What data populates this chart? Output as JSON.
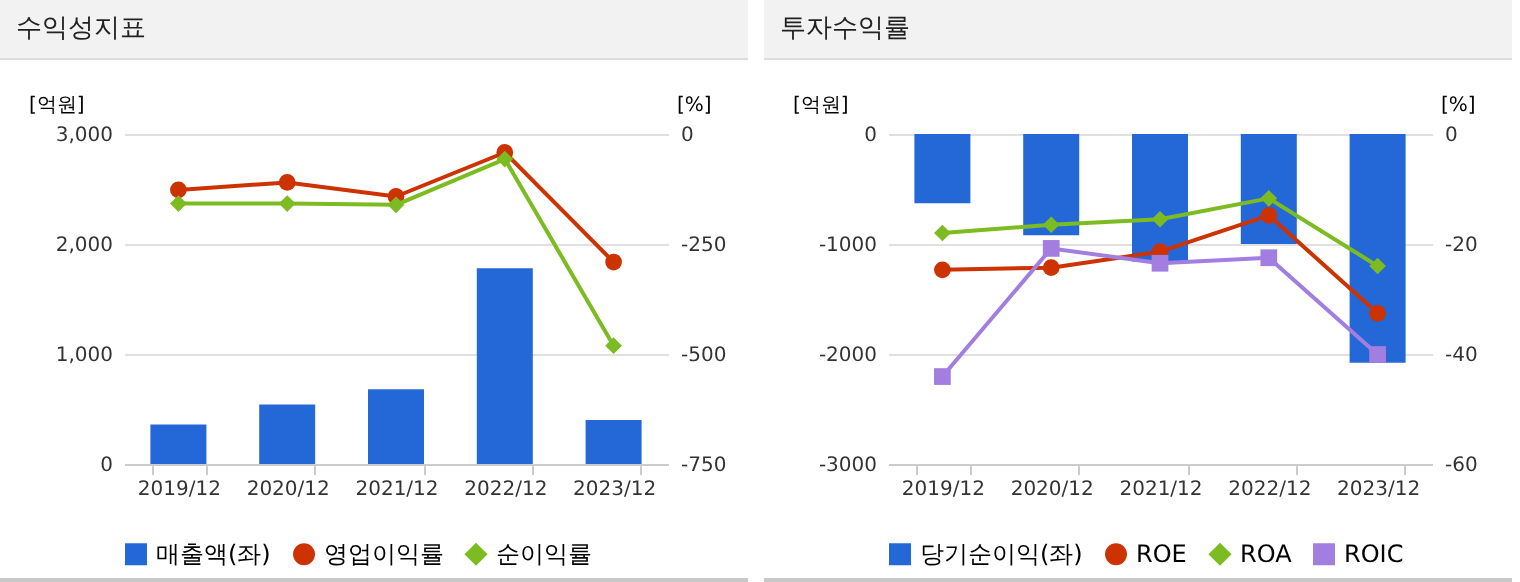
{
  "chart_data": [
    {
      "type": "bar",
      "title": "수익성지표",
      "ylabel": "[억원]",
      "y2label": "[%]",
      "categories": [
        "2019/12",
        "2020/12",
        "2021/12",
        "2022/12",
        "2023/12"
      ],
      "ylim": [
        0,
        3000
      ],
      "yticks": [
        0,
        {
          "value": 1000,
          "label": "1,000"
        },
        {
          "value": 2000,
          "label": "2,000"
        },
        {
          "value": 3000,
          "label": "3,000"
        }
      ],
      "y2lim": [
        -750,
        0
      ],
      "y2ticks": [
        -750,
        -500,
        -250,
        0
      ],
      "grid": "y",
      "legend": "bottom",
      "series": [
        {
          "name": "매출액(좌)",
          "color": "#2468d8",
          "values": [
            360,
            540,
            680,
            1780,
            400
          ]
        },
        {
          "name": "영업이익률",
          "type": "line",
          "axis": "y2",
          "marker": "circle",
          "color": "#cc3300",
          "values": [
            -127,
            -110,
            -142,
            -42,
            -291
          ]
        },
        {
          "name": "순이익률",
          "type": "line",
          "axis": "y2",
          "marker": "diamond",
          "color": "#7cbb21",
          "values": [
            -158,
            -158,
            -161,
            -57,
            -481
          ]
        }
      ]
    },
    {
      "type": "bar",
      "title": "투자수익률",
      "ylabel": "[억원]",
      "y2label": "[%]",
      "categories": [
        "2019/12",
        "2020/12",
        "2021/12",
        "2022/12",
        "2023/12"
      ],
      "ylim": [
        -3000,
        0
      ],
      "yticks": [
        -3000,
        -2000,
        -1000,
        0
      ],
      "y2lim": [
        -60,
        0
      ],
      "y2ticks": [
        -60,
        -40,
        -20,
        0
      ],
      "grid": "y",
      "legend": "bottom",
      "series": [
        {
          "name": "당기순이익(좌)",
          "color": "#2468d8",
          "values": [
            -630,
            -920,
            -1160,
            -1000,
            -2080
          ]
        },
        {
          "name": "ROE",
          "type": "line",
          "axis": "y2",
          "marker": "circle",
          "color": "#cc3300",
          "values": [
            -24.7,
            -24.3,
            -21.4,
            -14.8,
            -32.6
          ]
        },
        {
          "name": "ROA",
          "type": "line",
          "axis": "y2",
          "marker": "diamond",
          "color": "#7cbb21",
          "values": [
            -18.0,
            -16.5,
            -15.5,
            -11.7,
            -24.0
          ]
        },
        {
          "name": "ROIC",
          "type": "line",
          "axis": "y2",
          "marker": "square",
          "color": "#a27ee0",
          "values": [
            -44.1,
            -20.8,
            -23.5,
            -22.5,
            -40.1
          ]
        }
      ]
    }
  ]
}
